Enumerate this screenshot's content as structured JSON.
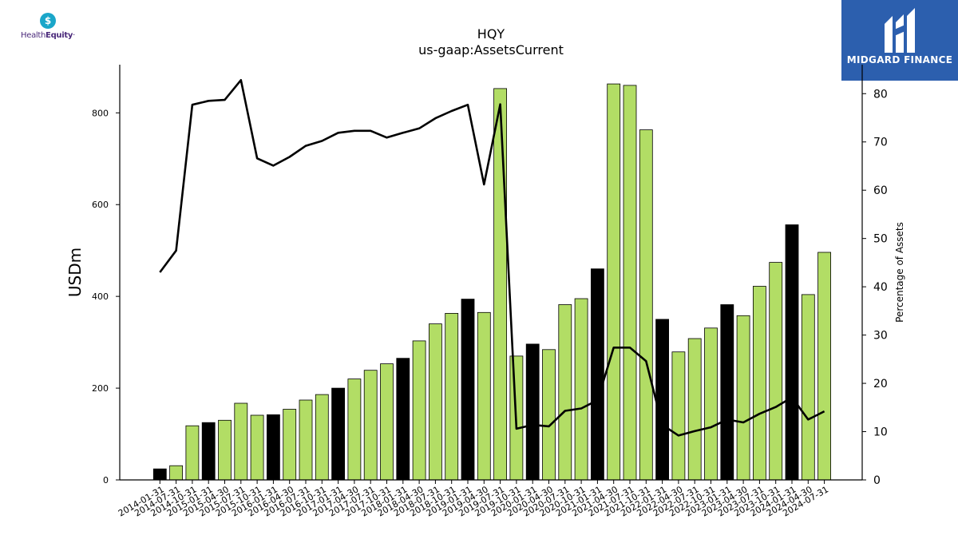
{
  "logos": {
    "left_brand": {
      "prefix": "Health",
      "suffix": "Equity",
      "icon": "dollar-shield-icon"
    },
    "right_brand": {
      "text": "MIDGARD FINANCE",
      "icon": "midgard-m-icon",
      "background": "#2c5fae"
    }
  },
  "chart_data": {
    "type": "bar",
    "title": "HQY",
    "subtitle": "us-gaap:AssetsCurrent",
    "ylabel": "USDm",
    "y2label": "Percentage of Assets",
    "ylim": [
      0,
      905
    ],
    "y2lim": [
      0,
      86
    ],
    "yticks": [
      0,
      200,
      400,
      600,
      800
    ],
    "y2ticks": [
      0,
      10,
      20,
      30,
      40,
      50,
      60,
      70,
      80
    ],
    "categories": [
      "2014-01-31",
      "2014-07-31",
      "2014-10-31",
      "2015-01-31",
      "2015-04-30",
      "2015-07-31",
      "2015-10-31",
      "2016-01-31",
      "2016-04-30",
      "2016-07-31",
      "2016-10-31",
      "2017-01-31",
      "2017-04-30",
      "2017-07-31",
      "2017-10-31",
      "2018-01-31",
      "2018-04-30",
      "2018-07-31",
      "2018-10-31",
      "2019-01-31",
      "2019-04-30",
      "2019-07-31",
      "2019-10-31",
      "2020-01-31",
      "2020-04-30",
      "2020-07-31",
      "2020-10-31",
      "2021-01-31",
      "2021-04-30",
      "2021-07-31",
      "2021-10-31",
      "2022-01-31",
      "2022-04-30",
      "2022-07-31",
      "2022-10-31",
      "2023-01-31",
      "2023-04-30",
      "2023-07-31",
      "2023-10-31",
      "2024-01-31",
      "2024-04-30",
      "2024-07-31"
    ],
    "series": [
      {
        "kind": "bar",
        "axis": "left",
        "values": [
          24,
          31,
          118,
          125,
          130,
          167,
          141,
          142,
          154,
          174,
          186,
          200,
          220,
          239,
          253,
          265,
          303,
          340,
          363,
          394,
          365,
          853,
          270,
          296,
          284,
          382,
          395,
          460,
          863,
          860,
          763,
          350,
          279,
          308,
          331,
          382,
          358,
          422,
          474,
          556,
          404,
          496
        ],
        "annual_flags": [
          true,
          false,
          false,
          true,
          false,
          false,
          false,
          true,
          false,
          false,
          false,
          true,
          false,
          false,
          false,
          true,
          false,
          false,
          false,
          true,
          false,
          false,
          false,
          true,
          false,
          false,
          false,
          true,
          false,
          false,
          false,
          true,
          false,
          false,
          false,
          true,
          false,
          false,
          false,
          true,
          false,
          false
        ]
      },
      {
        "kind": "line",
        "axis": "right",
        "values": [
          43,
          47.5,
          77.7,
          78.5,
          78.7,
          82.8,
          66.6,
          65.1,
          66.9,
          69.2,
          70.2,
          71.9,
          72.3,
          72.3,
          70.9,
          71.9,
          72.8,
          74.9,
          76.4,
          77.7,
          61.2,
          77.8,
          10.6,
          11.4,
          11.1,
          14.3,
          14.8,
          16.5,
          27.4,
          27.4,
          24.6,
          11.4,
          9.2,
          10.1,
          10.9,
          12.5,
          11.9,
          13.7,
          15.1,
          17.1,
          12.5,
          14.2
        ]
      }
    ],
    "colors": {
      "bar": "#b2dd65",
      "bar_annual": "#000000",
      "line": "#000000"
    },
    "grid": false,
    "legend": "none"
  }
}
